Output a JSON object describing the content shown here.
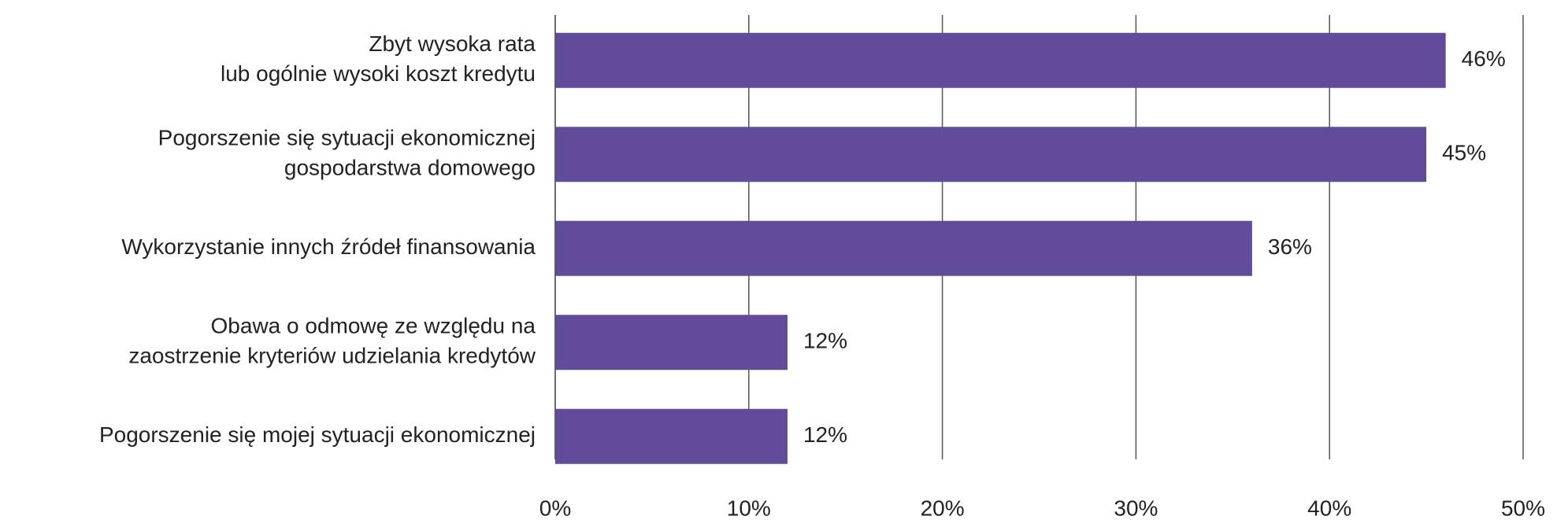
{
  "chart_data": {
    "type": "hbar",
    "categories": [
      "Zbyt wysoka rata\nlub ogólnie wysoki koszt kredytu",
      "Pogorszenie się sytuacji ekonomicznej\ngospodarstwa domowego",
      "Wykorzystanie innych źródeł finansowania",
      "Obawa o odmowę ze względu na\nzaostrzenie kryteriów udzielania kredytów",
      "Pogorszenie się mojej sytuacji ekonomicznej"
    ],
    "values": [
      46,
      45,
      36,
      12,
      12
    ],
    "value_labels": [
      "46%",
      "45%",
      "36%",
      "12%",
      "12%"
    ],
    "color": "#634b9c",
    "xlim": [
      0,
      50
    ],
    "xticks": [
      {
        "value": 0,
        "label": "0%"
      },
      {
        "value": 10,
        "label": "10%"
      },
      {
        "value": 20,
        "label": "20%"
      },
      {
        "value": 30,
        "label": "30%"
      },
      {
        "value": 40,
        "label": "40%"
      },
      {
        "value": 50,
        "label": "50%"
      }
    ],
    "grid": true
  }
}
